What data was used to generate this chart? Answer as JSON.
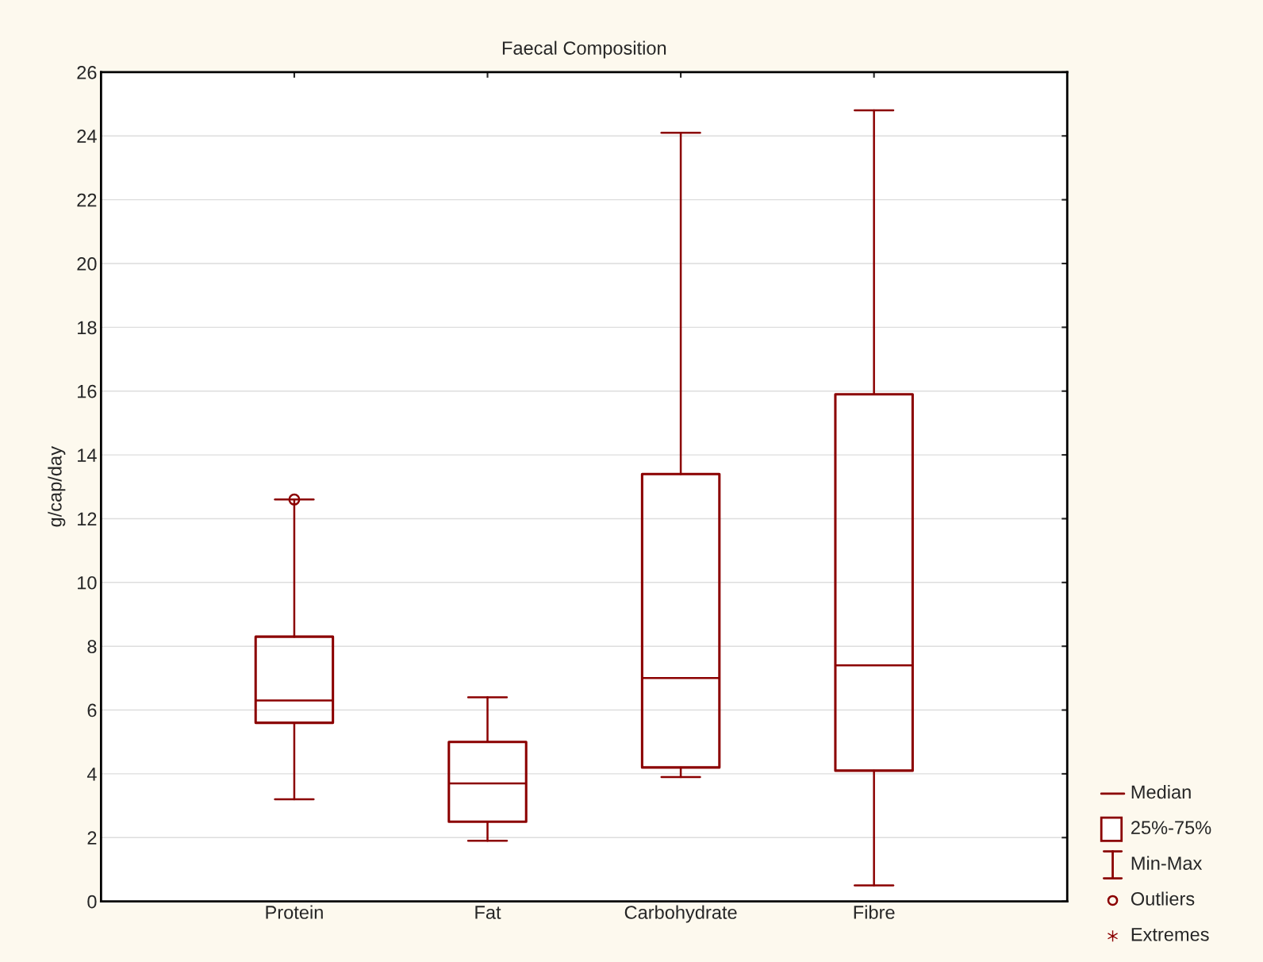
{
  "chart_data": {
    "type": "box",
    "title": "Faecal Composition",
    "ylabel": "g/cap/day",
    "categories": [
      "Protein",
      "Fat",
      "Carbohydrate",
      "Fibre"
    ],
    "series": [
      {
        "color": "#8b0000",
        "boxes": [
          {
            "low": 3.2,
            "q1": 5.6,
            "median": 6.3,
            "q3": 8.3,
            "high": 12.6,
            "outliers": [
              12.6
            ]
          },
          {
            "low": 1.9,
            "q1": 2.5,
            "median": 3.7,
            "q3": 5.0,
            "high": 6.4
          },
          {
            "low": 3.9,
            "q1": 4.2,
            "median": 7.0,
            "q3": 13.4,
            "high": 24.1
          },
          {
            "low": 0.5,
            "q1": 4.1,
            "median": 7.4,
            "q3": 15.9,
            "high": 24.8
          }
        ]
      }
    ],
    "ylim": [
      0,
      26
    ],
    "yticks": [
      0,
      2,
      4,
      6,
      8,
      10,
      12,
      14,
      16,
      18,
      20,
      22,
      24,
      26
    ],
    "grid": "y",
    "annotations": [
      "Median",
      "25%-75%",
      "Min-Max",
      "Outliers",
      "Extremes"
    ]
  }
}
